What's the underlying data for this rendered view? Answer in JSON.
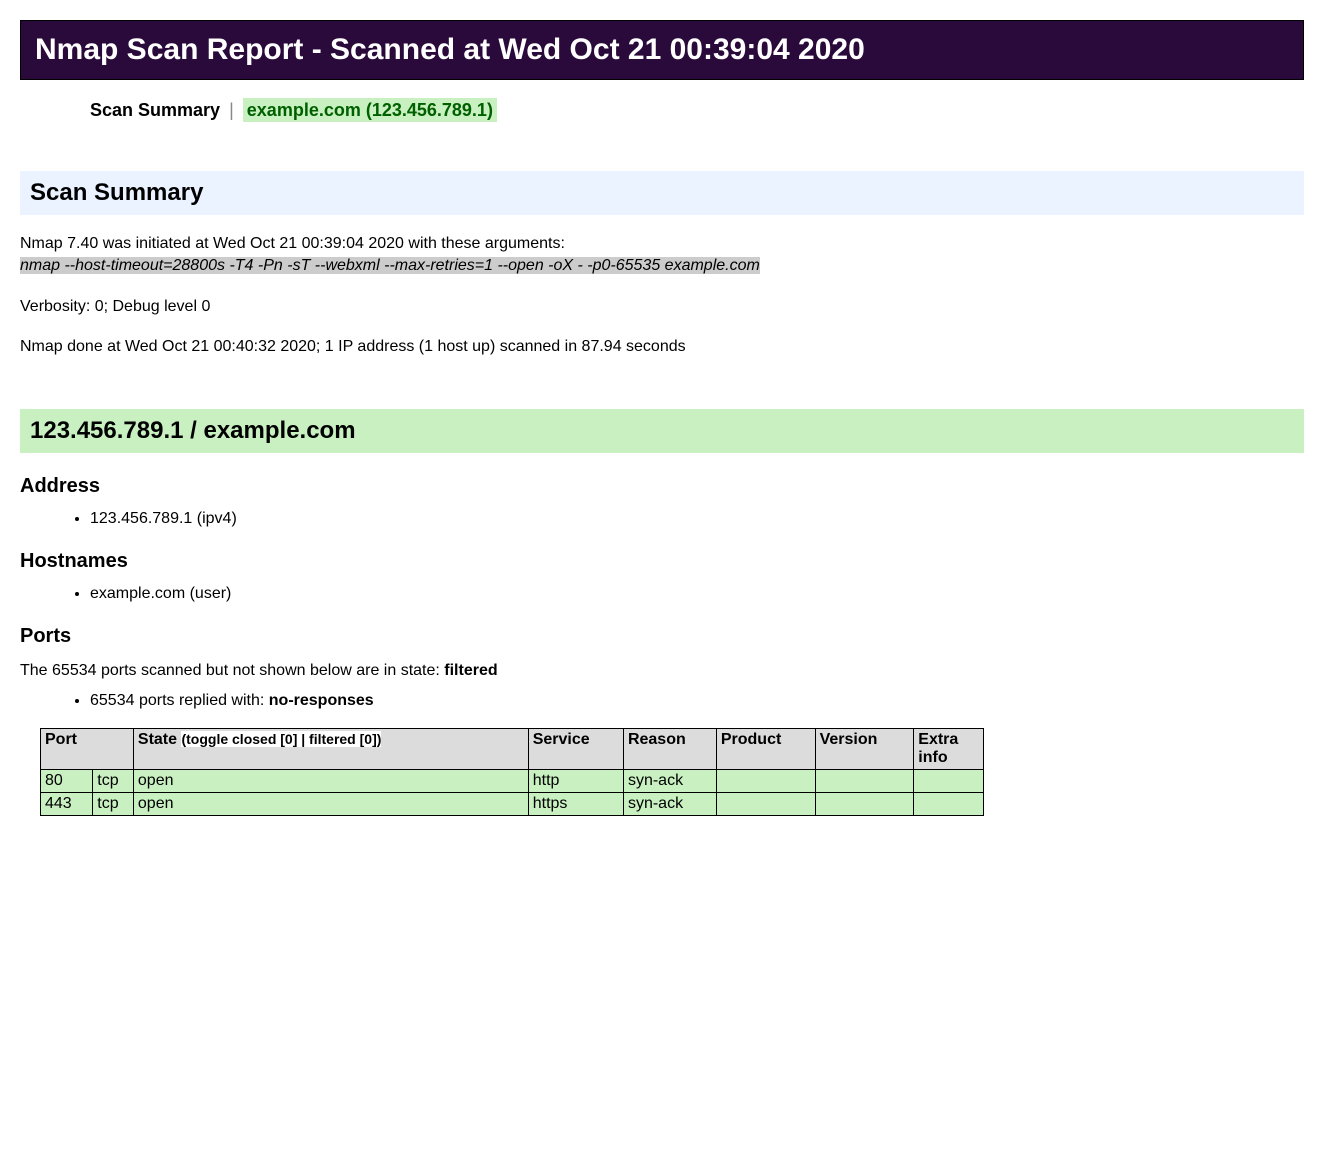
{
  "title": "Nmap Scan Report - Scanned at Wed Oct 21 00:39:04 2020",
  "nav": {
    "summary_label": "Scan Summary",
    "host_label": "example.com (123.456.789.1)"
  },
  "summary": {
    "heading": "Scan Summary",
    "initiated_line": "Nmap 7.40 was initiated at Wed Oct 21 00:39:04 2020 with these arguments:",
    "command": "nmap --host-timeout=28800s -T4 -Pn -sT --webxml --max-retries=1 --open -oX - -p0-65535 example.com",
    "verbosity_line": "Verbosity: 0; Debug level 0",
    "done_line": "Nmap done at Wed Oct 21 00:40:32 2020; 1 IP address (1 host up) scanned in 87.94 seconds"
  },
  "host": {
    "heading": "123.456.789.1 / example.com",
    "address_heading": "Address",
    "address_item": "123.456.789.1 (ipv4)",
    "hostnames_heading": "Hostnames",
    "hostnames_item": "example.com (user)",
    "ports_heading": "Ports",
    "ports_intro_pre": "The 65534 ports scanned but not shown below are in state: ",
    "ports_intro_state": "filtered",
    "ports_reply_pre": "65534 ports replied with: ",
    "ports_reply_val": "no-responses"
  },
  "table": {
    "headers": {
      "port": "Port",
      "state": "State",
      "state_toggle": "(toggle closed [0] | filtered [0])",
      "service": "Service",
      "reason": "Reason",
      "product": "Product",
      "version": "Version",
      "extra": "Extra info"
    },
    "rows": [
      {
        "port": "80",
        "proto": "tcp",
        "state": "open",
        "service": "http",
        "reason": "syn-ack",
        "product": "",
        "version": "",
        "extra": ""
      },
      {
        "port": "443",
        "proto": "tcp",
        "state": "open",
        "service": "https",
        "reason": "syn-ack",
        "product": "",
        "version": "",
        "extra": ""
      }
    ]
  },
  "colors": {
    "title_bg": "#2a0a3a",
    "green_bg": "#c8f0c0",
    "blue_bg": "#eaf3ff",
    "cmd_bg": "#cccccc",
    "th_bg": "#dcdcdc",
    "link_green": "#006000"
  }
}
